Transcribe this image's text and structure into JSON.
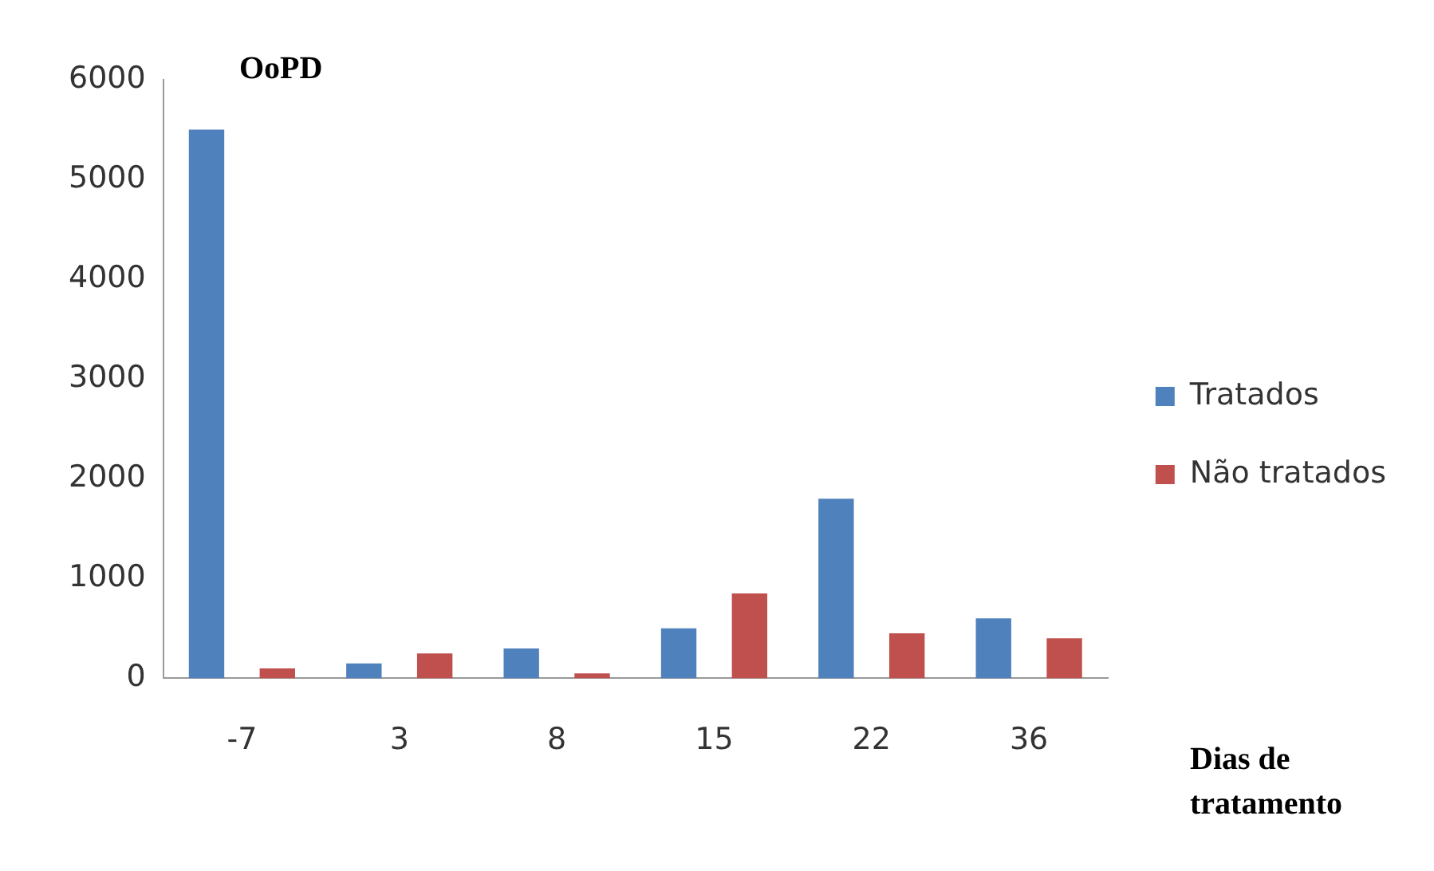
{
  "chart_data": {
    "type": "bar",
    "title": "OoPD",
    "xlabel": "Dias de tratamento",
    "categories": [
      "-7",
      "3",
      "8",
      "15",
      "22",
      "36"
    ],
    "series": [
      {
        "name": "Tratados",
        "color": "#4f81bd",
        "values": [
          5500,
          150,
          300,
          500,
          1800,
          600
        ]
      },
      {
        "name": "Não tratados",
        "color": "#c0504d",
        "values": [
          100,
          250,
          50,
          850,
          450,
          400
        ]
      }
    ],
    "ylim": [
      0,
      6000
    ],
    "yticks": [
      0,
      1000,
      2000,
      3000,
      4000,
      5000,
      6000
    ],
    "grid": false,
    "legend": "right"
  }
}
